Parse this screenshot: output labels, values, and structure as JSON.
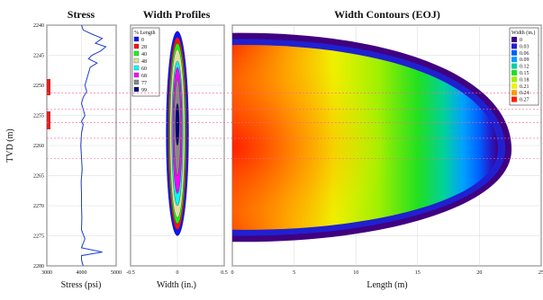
{
  "left_axis": {
    "label": "TVD (m)",
    "ticks": [
      "2240",
      "2245",
      "2250",
      "2255",
      "2260",
      "2265",
      "2270",
      "2275",
      "2280"
    ],
    "range": [
      2240,
      2280
    ]
  },
  "panels": {
    "stress": {
      "title": "Stress",
      "xlabel": "Stress (psi)",
      "xticks": [
        "3000",
        "4000",
        "5000"
      ],
      "xrange": [
        3000,
        5000
      ]
    },
    "width_profiles": {
      "title": "Width Profiles",
      "xlabel": "Width (in.)",
      "xticks": [
        "-0.5",
        "0",
        "0.5"
      ],
      "xrange": [
        -0.5,
        0.5
      ],
      "legend_title": "% Length",
      "legend": [
        {
          "label": "0",
          "color": "#1010ff"
        },
        {
          "label": "28",
          "color": "#ff1010"
        },
        {
          "label": "40",
          "color": "#10ff10"
        },
        {
          "label": "48",
          "color": "#e0e0a0"
        },
        {
          "label": "60",
          "color": "#00ffff"
        },
        {
          "label": "68",
          "color": "#ff00ff"
        },
        {
          "label": "77",
          "color": "#888888"
        },
        {
          "label": "99",
          "color": "#000080"
        }
      ]
    },
    "width_contours": {
      "title": "Width Contours (EOJ)",
      "xlabel": "Length (m)",
      "xticks": [
        "0",
        "5",
        "10",
        "15",
        "20",
        "25"
      ],
      "xrange": [
        0,
        25
      ],
      "legend_title": "Width (in.)",
      "legend": [
        {
          "label": "0",
          "color": "#400080"
        },
        {
          "label": "0.03",
          "color": "#2020d0"
        },
        {
          "label": "0.06",
          "color": "#0060ff"
        },
        {
          "label": "0.09",
          "color": "#00a0ff"
        },
        {
          "label": "0.12",
          "color": "#00d0a0"
        },
        {
          "label": "0.15",
          "color": "#20e020"
        },
        {
          "label": "0.18",
          "color": "#a0f000"
        },
        {
          "label": "0.21",
          "color": "#f0f000"
        },
        {
          "label": "0.24",
          "color": "#ffa000"
        },
        {
          "label": "0.27",
          "color": "#ff2000"
        }
      ]
    }
  },
  "chart_data": [
    {
      "type": "line",
      "title": "Stress",
      "xlabel": "Stress (psi)",
      "ylabel": "TVD (m)",
      "xlim": [
        3000,
        5000
      ],
      "ylim": [
        2240,
        2280
      ],
      "series": [
        {
          "x": [
            4000,
            4050,
            4300,
            4600,
            4400,
            4700,
            4550,
            4300,
            4200,
            4450,
            4250,
            4200,
            4150,
            4100,
            4150,
            4050,
            4000,
            4050,
            4100,
            4000,
            4050,
            4000,
            3980,
            4000,
            4020,
            3990,
            4000,
            4000,
            4010,
            4000,
            4100,
            4000,
            4600,
            4000,
            4000,
            4050
          ],
          "y": [
            2240,
            2240.8,
            2241.5,
            2242.2,
            2243,
            2243.6,
            2244.3,
            2245,
            2245.6,
            2246.3,
            2247,
            2248,
            2249,
            2250,
            2251,
            2252,
            2253,
            2254,
            2255,
            2256,
            2256.5,
            2258,
            2260,
            2262,
            2264,
            2266,
            2268,
            2270,
            2272,
            2274,
            2275.5,
            2277,
            2277.7,
            2278.3,
            2279,
            2280
          ]
        }
      ]
    },
    {
      "type": "area",
      "title": "Width Profiles",
      "xlabel": "Width (in.)",
      "xlim": [
        -0.5,
        0.5
      ],
      "ylim": [
        2240,
        2280
      ],
      "series": [
        {
          "name": "0",
          "halfwidth": 0.12,
          "top": 2241,
          "bottom": 2275
        },
        {
          "name": "28",
          "halfwidth": 0.1,
          "top": 2242,
          "bottom": 2274
        },
        {
          "name": "40",
          "halfwidth": 0.09,
          "top": 2243,
          "bottom": 2273
        },
        {
          "name": "48",
          "halfwidth": 0.08,
          "top": 2244,
          "bottom": 2272
        },
        {
          "name": "60",
          "halfwidth": 0.06,
          "top": 2246,
          "bottom": 2270
        },
        {
          "name": "68",
          "halfwidth": 0.05,
          "top": 2247,
          "bottom": 2268
        },
        {
          "name": "77",
          "halfwidth": 0.035,
          "top": 2249,
          "bottom": 2265
        },
        {
          "name": "99",
          "halfwidth": 0.02,
          "top": 2253,
          "bottom": 2260
        }
      ]
    },
    {
      "type": "heatmap",
      "title": "Width Contours (EOJ)",
      "xlabel": "Length (m)",
      "xlim": [
        0,
        25
      ],
      "ylim": [
        2240,
        2280
      ],
      "fracture_length": 22.6,
      "fracture_top": 2241.3,
      "fracture_bottom": 2276.0,
      "max_width_depth": 2260.7
    }
  ]
}
